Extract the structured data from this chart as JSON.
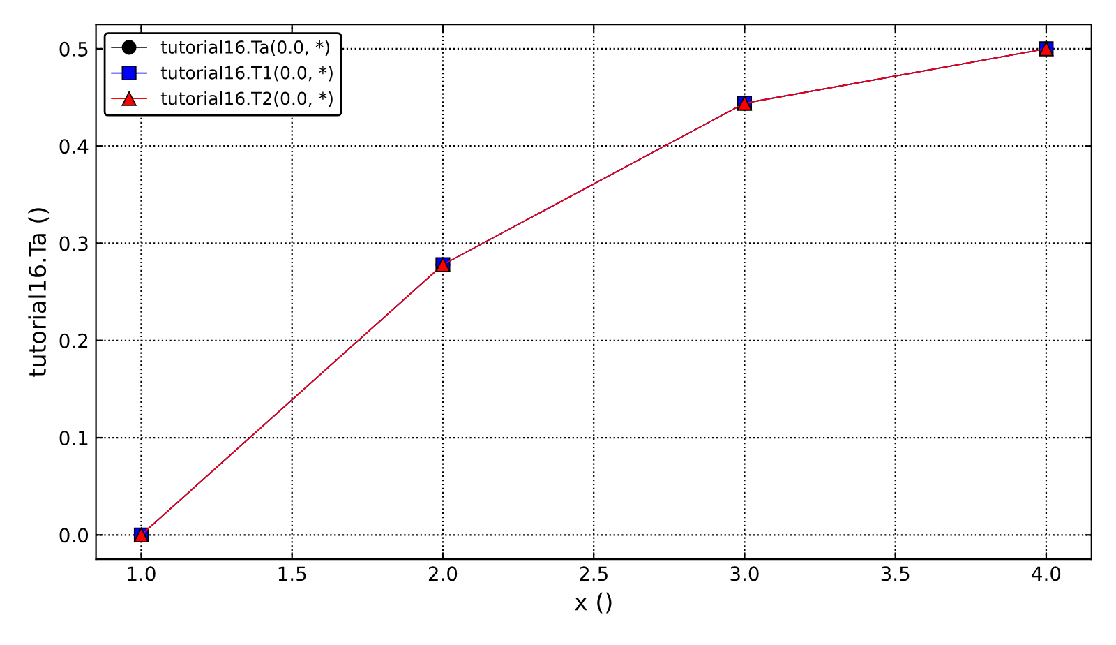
{
  "chart_data": {
    "type": "line",
    "xlabel": "x ()",
    "ylabel": "tutorial16.Ta ()",
    "x": [
      1.0,
      2.0,
      3.0,
      4.0
    ],
    "series": [
      {
        "name": "tutorial16.Ta(0.0, *)",
        "color": "#000000",
        "marker": "circle",
        "values": [
          0.0,
          0.278,
          0.444,
          0.5
        ]
      },
      {
        "name": "tutorial16.T1(0.0, *)",
        "color": "#0000ff",
        "marker": "square",
        "values": [
          0.0,
          0.278,
          0.444,
          0.5
        ]
      },
      {
        "name": "tutorial16.T2(0.0, *)",
        "color": "#ff0000",
        "marker": "triangle",
        "values": [
          0.0,
          0.278,
          0.444,
          0.5
        ]
      }
    ],
    "xlim": [
      0.85,
      4.15
    ],
    "xticks": [
      {
        "value": 1.0,
        "label": "1.0"
      },
      {
        "value": 1.5,
        "label": "1.5"
      },
      {
        "value": 2.0,
        "label": "2.0"
      },
      {
        "value": 2.5,
        "label": "2.5"
      },
      {
        "value": 3.0,
        "label": "3.0"
      },
      {
        "value": 3.5,
        "label": "3.5"
      },
      {
        "value": 4.0,
        "label": "4.0"
      }
    ],
    "ylim": [
      -0.025,
      0.525
    ],
    "yticks": [
      {
        "value": 0.0,
        "label": "0.0"
      },
      {
        "value": 0.1,
        "label": "0.1"
      },
      {
        "value": 0.2,
        "label": "0.2"
      },
      {
        "value": 0.3,
        "label": "0.3"
      },
      {
        "value": 0.4,
        "label": "0.4"
      },
      {
        "value": 0.5,
        "label": "0.5"
      }
    ],
    "grid": true,
    "legend": "top left",
    "line_style": "solid"
  }
}
